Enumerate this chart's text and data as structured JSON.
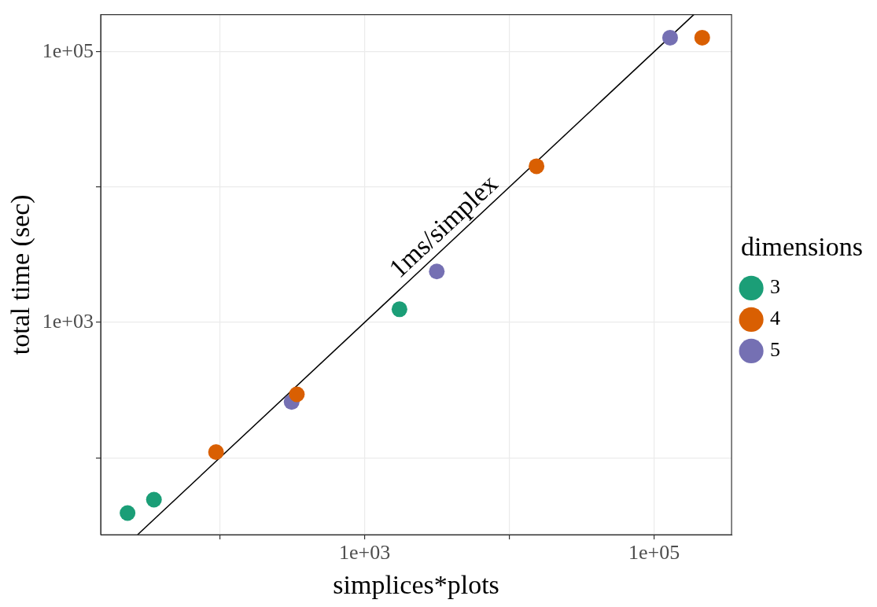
{
  "chart_data": {
    "type": "scatter",
    "xlabel": "simplices*plots",
    "ylabel": "total time (sec)",
    "legend_title": "dimensions",
    "legend": "right",
    "log": "xy",
    "grid": true,
    "marker": "circle",
    "xlim": [
      15,
      343000
    ],
    "ylim": [
      27,
      188000
    ],
    "xticks": [
      {
        "value": 100,
        "label": null
      },
      {
        "value": 1000,
        "label": "1e+03"
      },
      {
        "value": 10000,
        "label": null
      },
      {
        "value": 100000,
        "label": "1e+05"
      }
    ],
    "yticks": [
      {
        "value": 100,
        "label": null
      },
      {
        "value": 1000,
        "label": "1e+03"
      },
      {
        "value": 10000,
        "label": null
      },
      {
        "value": 100000,
        "label": "1e+05"
      }
    ],
    "series": [
      {
        "name": "3",
        "color": "#1b9e77",
        "x": [
          23,
          35,
          1740
        ],
        "values": [
          39,
          49,
          1250
        ]
      },
      {
        "name": "4",
        "color": "#d95f02",
        "x": [
          94,
          340,
          15400,
          215000
        ],
        "values": [
          110,
          294,
          14250,
          127000
        ]
      },
      {
        "name": "5",
        "color": "#7570b3",
        "x": [
          313,
          3150,
          129000
        ],
        "values": [
          258,
          2380,
          127000
        ]
      },
      {
        "type": "line",
        "color": "#000000",
        "marker": "none",
        "line_style": "solid",
        "x": [
          27,
          188000
        ],
        "values": [
          27,
          188000
        ]
      }
    ],
    "annotations": [
      "1ms/simplex"
    ]
  }
}
